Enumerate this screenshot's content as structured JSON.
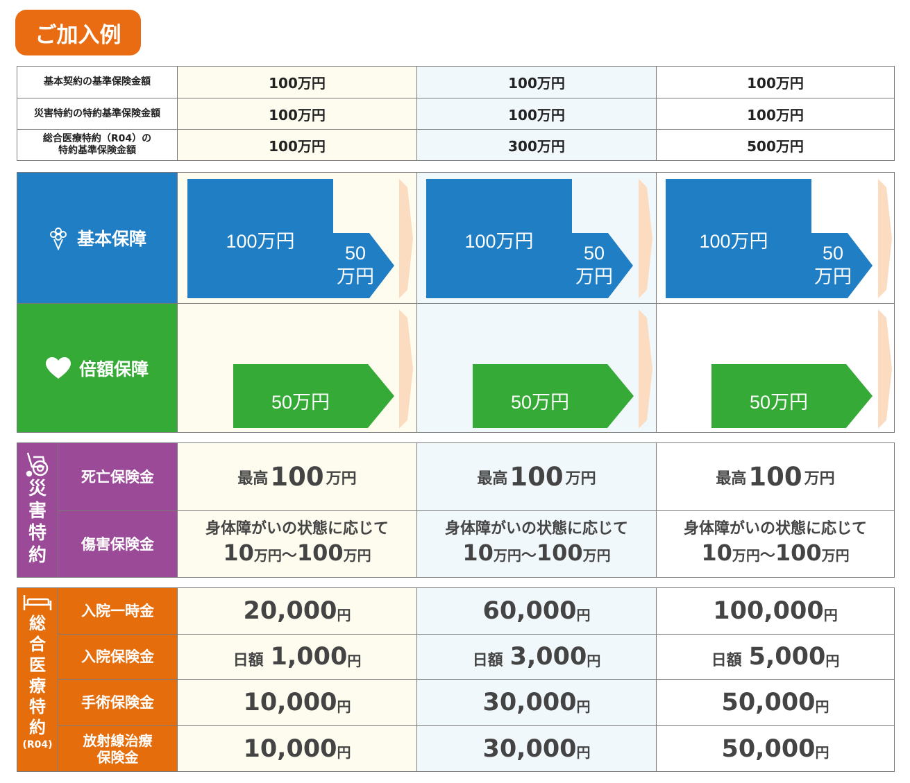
{
  "badge": "ご加入例",
  "header_rows": [
    {
      "label": "基本契約の基準保険金額",
      "values": [
        "100万円",
        "100万円",
        "100万円"
      ]
    },
    {
      "label": "災害特約の特約基準保険金額",
      "values": [
        "100万円",
        "100万円",
        "100万円"
      ]
    },
    {
      "label_line1": "総合医療特約（R04）の",
      "label_line2": "特約基準保険金額",
      "values": [
        "100万円",
        "300万円",
        "500万円"
      ]
    }
  ],
  "basic": {
    "label": "基本保障",
    "icon": "bouquet-icon",
    "main_amount": "100万円",
    "arrow_line1": "50",
    "arrow_line2": "万円"
  },
  "double": {
    "label": "倍額保障",
    "icon": "heart-icon",
    "arrow_amount": "50万円"
  },
  "disaster": {
    "title_chars": [
      "災",
      "害",
      "特",
      "約"
    ],
    "icon": "wheelchair-icon",
    "death_label": "死亡保険金",
    "death_prefix": "最高",
    "death_num": "100",
    "death_unit": "万円",
    "injury_label": "傷害保険金",
    "injury_line1": "身体障がいの状態に応じて",
    "injury_num1": "10",
    "injury_unit1": "万円",
    "injury_sep": "～",
    "injury_num2": "100",
    "injury_unit2": "万円"
  },
  "medical": {
    "title_chars": [
      "総",
      "合",
      "医",
      "療",
      "特",
      "約"
    ],
    "title_sub": "(R04)",
    "icon": "bed-icon",
    "rows": [
      {
        "label": "入院一時金",
        "prefix": "",
        "values": [
          "20,000",
          "60,000",
          "100,000"
        ]
      },
      {
        "label": "入院保険金",
        "prefix": "日額",
        "values": [
          "1,000",
          "3,000",
          "5,000"
        ]
      },
      {
        "label": "手術保険金",
        "prefix": "",
        "values": [
          "10,000",
          "30,000",
          "50,000"
        ]
      },
      {
        "label_line1": "放射線治療",
        "label_line2": "保険金",
        "prefix": "",
        "values": [
          "10,000",
          "30,000",
          "50,000"
        ]
      }
    ],
    "unit": "円"
  },
  "colors": {
    "orange": "#ea6c12",
    "blue": "#1f7ec4",
    "green": "#36aa36",
    "purple": "#9b4a98",
    "peach": "#fbdcc0"
  }
}
